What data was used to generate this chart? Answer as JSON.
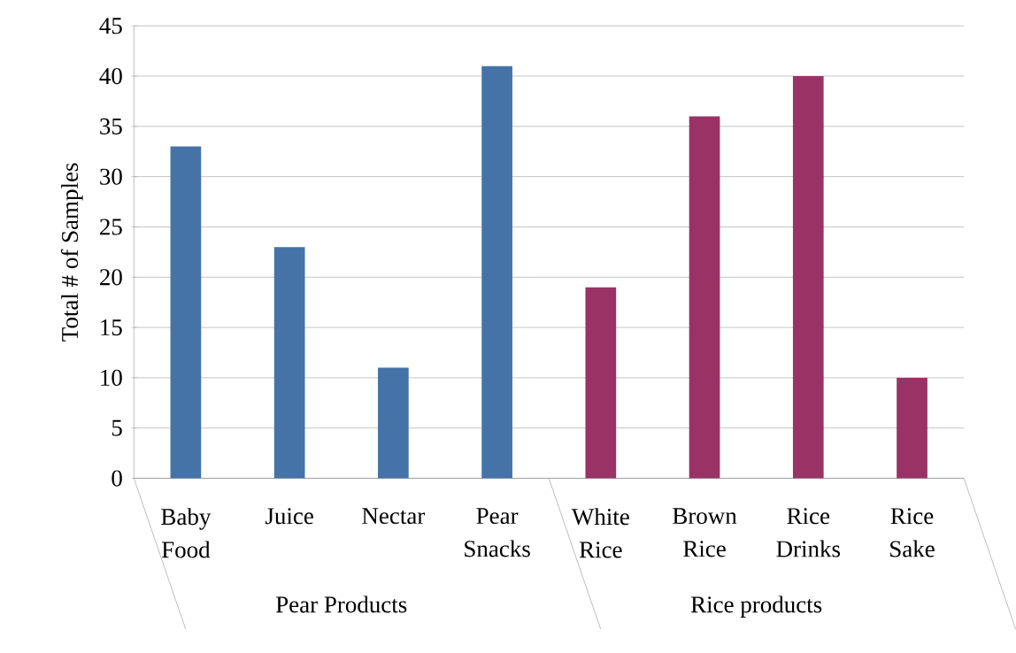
{
  "chart_data": {
    "type": "bar",
    "ylabel": "Total # of Samples",
    "categories": [
      "Baby Food",
      "Juice",
      "Nectar",
      "Pear Snacks",
      "White Rice",
      "Brown Rice",
      "Rice Drinks",
      "Rice Sake"
    ],
    "values": [
      33,
      23,
      11,
      41,
      19,
      36,
      40,
      10
    ],
    "colors": [
      "#4573a7",
      "#4573a7",
      "#4573a7",
      "#4573a7",
      "#993366",
      "#993366",
      "#993366",
      "#993366"
    ],
    "ylim": [
      0,
      45
    ],
    "yticks": [
      0,
      5,
      10,
      15,
      20,
      25,
      30,
      35,
      40,
      45
    ],
    "grid": "y",
    "annotations": [
      "Pear Products",
      "Rice products"
    ]
  }
}
